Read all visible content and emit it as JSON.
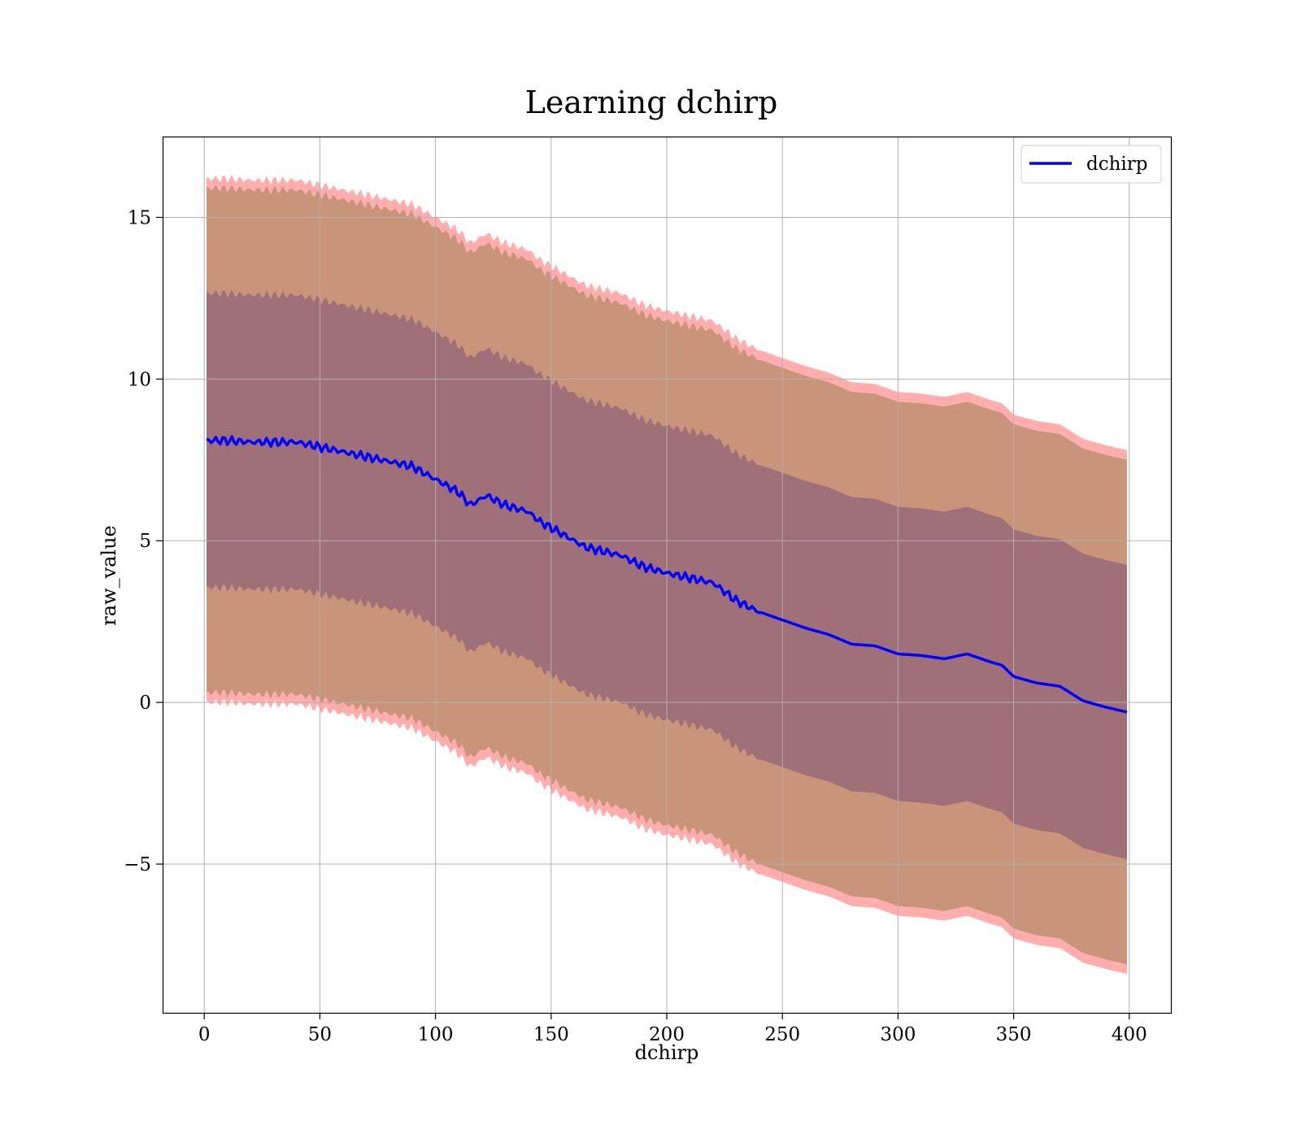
{
  "chart_data": {
    "type": "area",
    "title": "Learning dchirp",
    "xlabel": "dchirp",
    "ylabel": "raw_value",
    "xlim": [
      -18,
      418
    ],
    "ylim": [
      -9.6,
      17.5
    ],
    "xticks": [
      0,
      50,
      100,
      150,
      200,
      250,
      300,
      350,
      400
    ],
    "yticks": [
      -5,
      0,
      5,
      10,
      15
    ],
    "xtick_labels": [
      "0",
      "50",
      "100",
      "150",
      "200",
      "250",
      "300",
      "350",
      "400"
    ],
    "ytick_labels": [
      "−5",
      "0",
      "5",
      "10",
      "15"
    ],
    "grid": true,
    "legend": {
      "position": "top-right",
      "entries": [
        "dchirp"
      ]
    },
    "colors": {
      "mean_line": "#0000ff",
      "outer_band": "#ff9999",
      "middle_band": "#c8947a",
      "inner_band": "#a07078"
    },
    "series": [
      {
        "name": "dchirp",
        "x": [
          1,
          10,
          20,
          30,
          40,
          50,
          60,
          70,
          80,
          90,
          100,
          110,
          115,
          122,
          130,
          140,
          145,
          155,
          165,
          180,
          190,
          200,
          210,
          220,
          230,
          240,
          250,
          260,
          270,
          280,
          290,
          300,
          310,
          320,
          330,
          340,
          345,
          350,
          360,
          370,
          380,
          390,
          399
        ],
        "values": [
          8.1,
          8.1,
          8.05,
          8.05,
          8.05,
          7.9,
          7.75,
          7.6,
          7.45,
          7.3,
          6.9,
          6.5,
          6.1,
          6.4,
          6.1,
          5.9,
          5.6,
          5.2,
          4.8,
          4.55,
          4.2,
          4.0,
          3.85,
          3.7,
          3.15,
          2.8,
          2.55,
          2.3,
          2.1,
          1.8,
          1.75,
          1.5,
          1.45,
          1.35,
          1.5,
          1.25,
          1.15,
          0.8,
          0.6,
          0.5,
          0.05,
          -0.15,
          -0.3
        ]
      }
    ]
  }
}
